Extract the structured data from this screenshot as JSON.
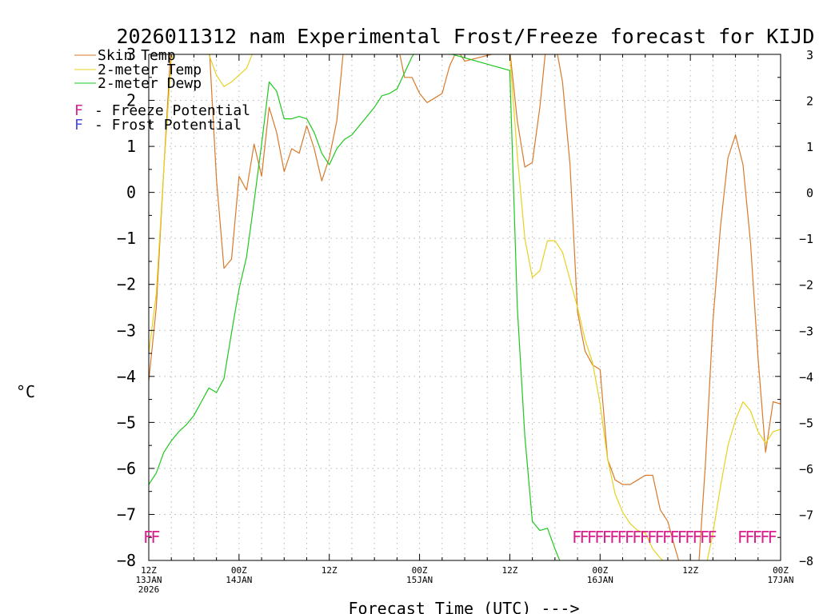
{
  "chart_data": {
    "type": "line",
    "title": "2026011312 nam Experimental Frost/Freeze forecast for KIJD",
    "ylabel": "°C",
    "xlabel": "Forecast Time (UTC) --->",
    "ylim": [
      -8,
      3
    ],
    "xlim": [
      0,
      84
    ],
    "y_ticks": [
      3,
      2,
      1,
      0,
      -1,
      -2,
      -3,
      -4,
      -5,
      -6,
      -7,
      -8
    ],
    "y_tick_labels": [
      "3",
      "2",
      "1",
      "0",
      "−1",
      "−2",
      "−3",
      "−4",
      "−5",
      "−6",
      "−7",
      "−8"
    ],
    "x_ticks": [
      {
        "hour": 0,
        "lines": [
          "12Z",
          "13JAN",
          "2026"
        ]
      },
      {
        "hour": 12,
        "lines": [
          "00Z",
          "14JAN"
        ]
      },
      {
        "hour": 24,
        "lines": [
          "12Z"
        ]
      },
      {
        "hour": 36,
        "lines": [
          "00Z",
          "15JAN"
        ]
      },
      {
        "hour": 48,
        "lines": [
          "12Z"
        ]
      },
      {
        "hour": 60,
        "lines": [
          "00Z",
          "16JAN"
        ]
      },
      {
        "hour": 72,
        "lines": [
          "12Z"
        ]
      },
      {
        "hour": 84,
        "lines": [
          "00Z",
          "17JAN"
        ]
      }
    ],
    "grid": true,
    "legend": [
      {
        "label": "Skin Temp",
        "color": "#d9792a"
      },
      {
        "label": "2-meter Temp",
        "color": "#e6d21e"
      },
      {
        "label": "2-meter Dewp",
        "color": "#1ec81e"
      }
    ],
    "potential_legend": [
      {
        "symbol": "F",
        "label": "- Freeze Potential",
        "color": "#d8208c"
      },
      {
        "symbol": "F",
        "label": "- Frost Potential",
        "color": "#4a4ae8"
      }
    ],
    "freeze_marker_hours": [
      0,
      1,
      57,
      58,
      59,
      60,
      61,
      62,
      63,
      64,
      65,
      66,
      67,
      68,
      69,
      70,
      71,
      72,
      73,
      74,
      75,
      79,
      80,
      81,
      82,
      83
    ],
    "series": [
      {
        "name": "Skin Temp",
        "color": "#d9792a",
        "x": [
          0,
          1,
          2,
          3,
          5,
          8,
          9,
          10,
          11,
          12,
          13,
          14,
          15,
          16,
          17,
          18,
          19,
          20,
          21,
          22,
          23,
          24,
          25,
          26,
          27,
          33,
          34,
          35,
          36,
          37,
          38,
          39,
          40,
          41,
          42,
          48,
          49,
          50,
          51,
          52,
          53,
          54,
          55,
          56,
          57,
          58,
          59,
          60,
          61,
          62,
          63,
          64,
          65,
          66,
          67,
          68,
          69,
          70,
          71,
          72,
          73,
          74,
          75,
          76,
          77,
          78,
          79,
          80,
          81,
          82,
          83,
          84
        ],
        "y": [
          -4.1,
          -2.5,
          0.5,
          3.3,
          3.6,
          3.3,
          0.3,
          -1.65,
          -1.45,
          0.35,
          0.05,
          1.05,
          0.35,
          1.85,
          1.3,
          0.45,
          0.95,
          0.85,
          1.45,
          0.95,
          0.25,
          0.75,
          1.55,
          3.3,
          3.5,
          3.3,
          2.5,
          2.5,
          2.15,
          1.95,
          2.05,
          2.15,
          2.75,
          3.1,
          2.85,
          3.1,
          1.55,
          0.55,
          0.65,
          1.85,
          3.5,
          3.3,
          2.4,
          0.6,
          -2.6,
          -3.45,
          -3.75,
          -3.85,
          -5.8,
          -6.25,
          -6.35,
          -6.35,
          -6.25,
          -6.15,
          -6.15,
          -6.9,
          -7.15,
          -7.75,
          -8.3,
          -8.5,
          -8.4,
          -5.9,
          -2.8,
          -0.75,
          0.75,
          1.25,
          0.6,
          -1.1,
          -3.6,
          -5.65,
          -4.55,
          -4.6
        ]
      },
      {
        "name": "2-meter Temp",
        "color": "#e6d21e",
        "x": [
          0,
          1,
          2,
          3,
          5,
          8,
          9,
          10,
          11,
          12,
          13,
          14,
          48,
          49,
          50,
          51,
          52,
          53,
          54,
          55,
          56,
          57,
          58,
          59,
          60,
          61,
          62,
          63,
          64,
          65,
          66,
          67,
          68,
          69,
          70,
          71,
          72,
          73,
          74,
          75,
          76,
          77,
          78,
          79,
          80,
          81,
          82,
          83,
          84
        ],
        "y": [
          -3.5,
          -2.2,
          0.5,
          2.9,
          3.5,
          3.0,
          2.55,
          2.3,
          2.4,
          2.55,
          2.7,
          3.1,
          3.0,
          0.8,
          -1.0,
          -1.85,
          -1.7,
          -1.05,
          -1.05,
          -1.3,
          -1.9,
          -2.5,
          -3.2,
          -3.7,
          -4.6,
          -5.8,
          -6.55,
          -6.95,
          -7.2,
          -7.35,
          -7.4,
          -7.75,
          -7.95,
          -8.1,
          -8.2,
          -8.3,
          -8.4,
          -8.35,
          -8.2,
          -7.4,
          -6.4,
          -5.5,
          -4.95,
          -4.55,
          -4.75,
          -5.2,
          -5.45,
          -5.2,
          -5.15
        ]
      },
      {
        "name": "2-meter Dewp",
        "color": "#1ec81e",
        "x": [
          0,
          1,
          2,
          3,
          4,
          5,
          6,
          7,
          8,
          9,
          10,
          11,
          12,
          13,
          14,
          15,
          16,
          17,
          18,
          19,
          20,
          21,
          22,
          23,
          24,
          25,
          26,
          27,
          28,
          29,
          30,
          31,
          32,
          33,
          34,
          35,
          36,
          48,
          49,
          50,
          51,
          52,
          53,
          54,
          55
        ],
        "y": [
          -6.35,
          -6.1,
          -5.65,
          -5.4,
          -5.2,
          -5.05,
          -4.85,
          -4.55,
          -4.25,
          -4.35,
          -4.05,
          -3.05,
          -2.1,
          -1.4,
          -0.2,
          1.05,
          2.4,
          2.2,
          1.6,
          1.6,
          1.65,
          1.6,
          1.3,
          0.85,
          0.6,
          0.95,
          1.15,
          1.25,
          1.45,
          1.65,
          1.85,
          2.1,
          2.15,
          2.25,
          2.6,
          2.95,
          3.2,
          2.65,
          -2.5,
          -5.3,
          -7.15,
          -7.35,
          -7.3,
          -7.75,
          -8.15
        ]
      }
    ]
  }
}
